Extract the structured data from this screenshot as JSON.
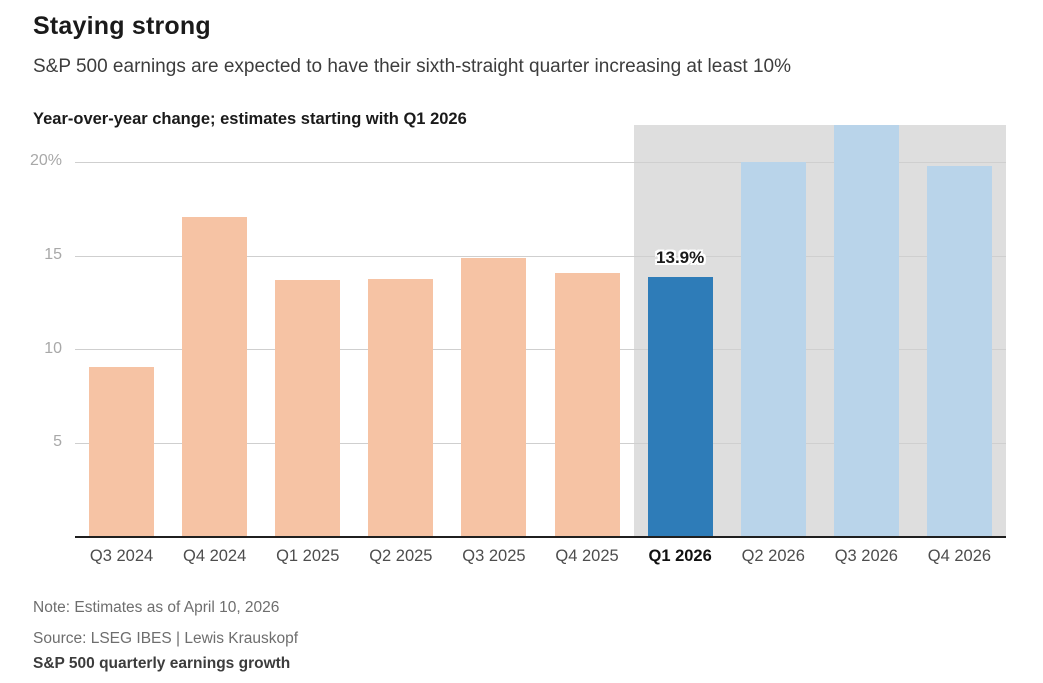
{
  "header": {
    "title": "Staying strong",
    "subtitle": "S&P 500 earnings are expected to have their sixth-straight quarter increasing at least 10%",
    "kicker": "Year-over-year change; estimates starting with Q1 2026"
  },
  "chart_data": {
    "type": "bar",
    "title": "Year-over-year change; estimates starting with Q1 2026",
    "categories": [
      "Q3 2024",
      "Q4 2024",
      "Q1 2025",
      "Q2 2025",
      "Q3 2025",
      "Q4 2025",
      "Q1 2026",
      "Q2 2026",
      "Q3 2026",
      "Q4 2026"
    ],
    "values": [
      9.1,
      17.1,
      13.7,
      13.8,
      14.9,
      14.1,
      13.9,
      20.0,
      22.0,
      19.8
    ],
    "bar_styles": [
      "actual",
      "actual",
      "actual",
      "actual",
      "actual",
      "actual",
      "current",
      "estimate",
      "estimate",
      "estimate"
    ],
    "colors": {
      "actual": "#f6c3a4",
      "current": "#2e7cb8",
      "estimate": "#b9d4ea",
      "band": "#dedede",
      "gridline": "#cfcfcf",
      "axis": "#1f1f1f"
    },
    "ylim": [
      0,
      22
    ],
    "yticks": [
      5,
      10,
      15,
      20
    ],
    "ytick_labels": [
      "5",
      "10",
      "15",
      "20%"
    ],
    "grid": true,
    "legend": "none",
    "annotated_category": "Q1 2026",
    "annotation_label": "13.9%",
    "emphasized_category": "Q1 2026",
    "estimate_band_start_category": "Q1 2026"
  },
  "footer": {
    "note": "Note: Estimates as of April 10, 2026",
    "source": "Source: LSEG IBES | Lewis Krauskopf",
    "tagline": "S&P 500 quarterly earnings growth"
  }
}
